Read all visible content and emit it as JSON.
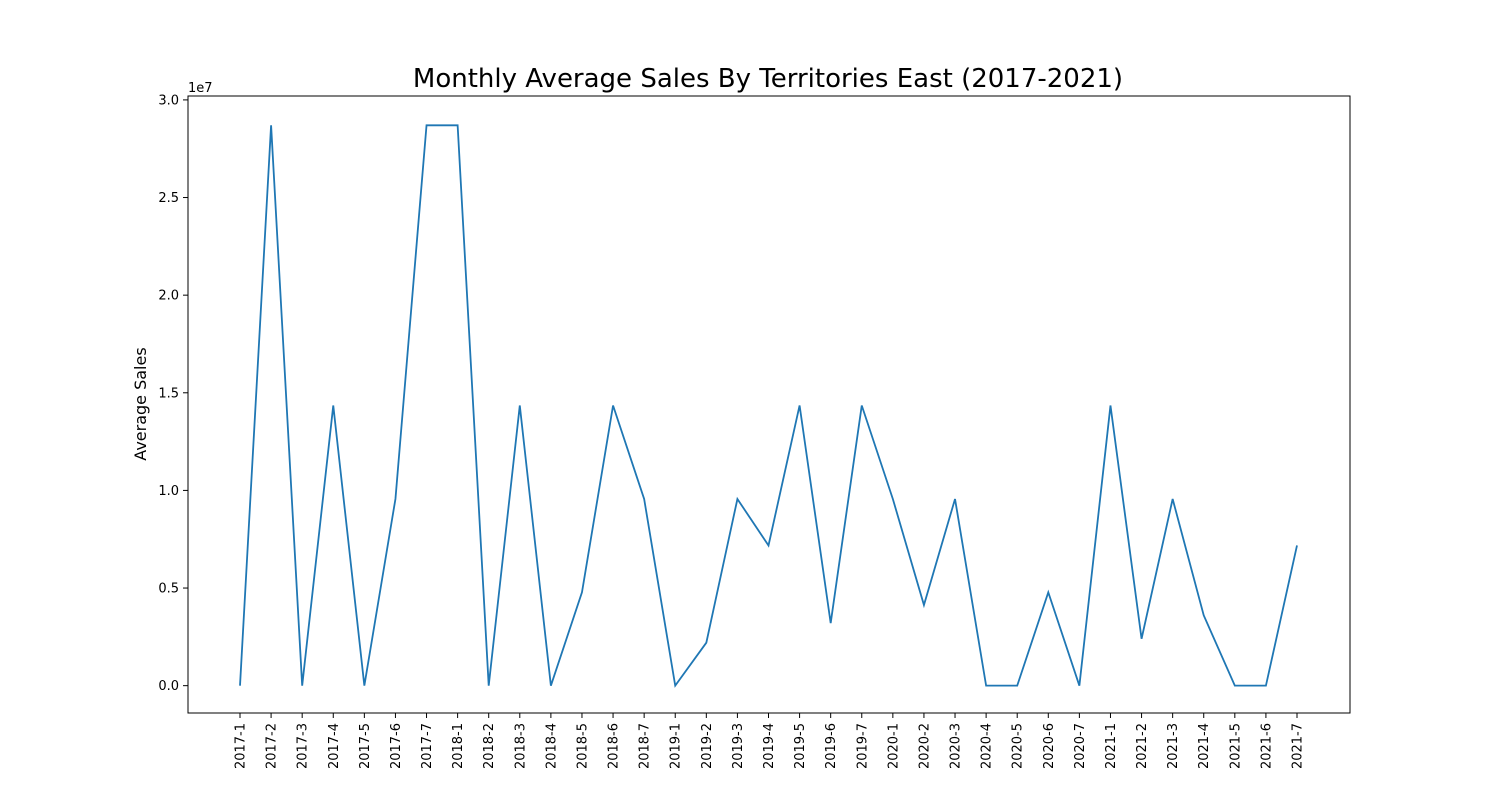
{
  "chart_data": {
    "type": "line",
    "title": "Monthly Average Sales By Territories East (2017-2021)",
    "xlabel": "",
    "ylabel": "Average Sales",
    "y_offset_label": "1e7",
    "ylim": [
      -1400000,
      30200000
    ],
    "y_ticks": [
      0,
      5000000,
      10000000,
      15000000,
      20000000,
      25000000,
      30000000
    ],
    "y_tick_labels": [
      "0.0",
      "0.5",
      "1.0",
      "1.5",
      "2.0",
      "2.5",
      "3.0"
    ],
    "grid": false,
    "legend": "none",
    "line_color": "#1f77b4",
    "categories": [
      "2017-1",
      "2017-2",
      "2017-3",
      "2017-4",
      "2017-5",
      "2017-6",
      "2017-7",
      "2018-1",
      "2018-2",
      "2018-3",
      "2018-4",
      "2018-5",
      "2018-6",
      "2018-7",
      "2019-1",
      "2019-2",
      "2019-3",
      "2019-4",
      "2019-5",
      "2019-6",
      "2019-7",
      "2020-1",
      "2020-2",
      "2020-3",
      "2020-4",
      "2020-5",
      "2020-6",
      "2020-7",
      "2021-1",
      "2021-2",
      "2021-3",
      "2021-4",
      "2021-5",
      "2021-6",
      "2021-7"
    ],
    "series": [
      {
        "values": [
          0,
          28700000,
          0,
          14350000,
          0,
          9560000,
          28700000,
          28700000,
          0,
          14350000,
          0,
          4780000,
          14350000,
          9560000,
          0,
          2200000,
          9560000,
          7180000,
          14350000,
          3200000,
          14350000,
          9560000,
          4130000,
          9560000,
          0,
          0,
          4780000,
          0,
          14350000,
          2400000,
          9560000,
          3600000,
          0,
          0,
          7180000
        ]
      }
    ]
  }
}
